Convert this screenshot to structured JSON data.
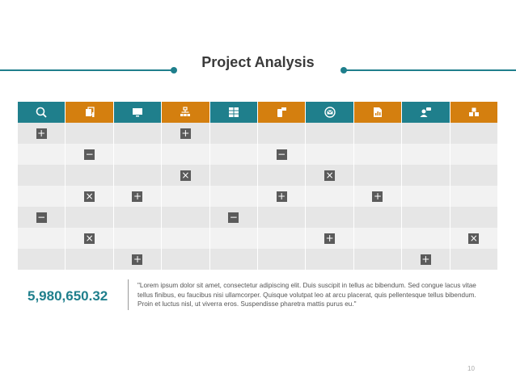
{
  "title": "Project Analysis",
  "header_cells": [
    {
      "icon": "search-icon",
      "color": "#1f7f8c"
    },
    {
      "icon": "documents-icon",
      "color": "#d47f0f"
    },
    {
      "icon": "monitor-icon",
      "color": "#1f7f8c"
    },
    {
      "icon": "org-chart-icon",
      "color": "#d47f0f"
    },
    {
      "icon": "table-icon",
      "color": "#1f7f8c"
    },
    {
      "icon": "mobile-message-icon",
      "color": "#d47f0f"
    },
    {
      "icon": "mail-icon",
      "color": "#1f7f8c"
    },
    {
      "icon": "report-icon",
      "color": "#d47f0f"
    },
    {
      "icon": "user-chat-icon",
      "color": "#1f7f8c"
    },
    {
      "icon": "boxes-icon",
      "color": "#d47f0f"
    }
  ],
  "rows": [
    [
      "+",
      "",
      "",
      "+",
      "",
      "",
      "",
      "",
      "",
      ""
    ],
    [
      "",
      "−",
      "",
      "",
      "",
      "−",
      "",
      "",
      "",
      ""
    ],
    [
      "",
      "",
      "",
      "×",
      "",
      "",
      "×",
      "",
      "",
      ""
    ],
    [
      "",
      "×",
      "+",
      "",
      "",
      "+",
      "",
      "+",
      "",
      ""
    ],
    [
      "−",
      "",
      "",
      "",
      "−",
      "",
      "",
      "",
      "",
      ""
    ],
    [
      "",
      "×",
      "",
      "",
      "",
      "",
      "+",
      "",
      "",
      "×"
    ],
    [
      "",
      "",
      "+",
      "",
      "",
      "",
      "",
      "",
      "+",
      ""
    ]
  ],
  "highlight_value": "5,980,650.32",
  "quote": "\"Lorem ipsum dolor sit amet, consectetur adipiscing elit. Duis suscipit in tellus ac bibendum. Sed congue lacus vitae tellus finibus, eu faucibus nisi ullamcorper. Quisque volutpat leo at arcu placerat, quis pellentesque tellus bibendum. Proin et luctus nisl, ut viverra eros. Suspendisse pharetra mattis purus eu.\"",
  "page_number": "10"
}
